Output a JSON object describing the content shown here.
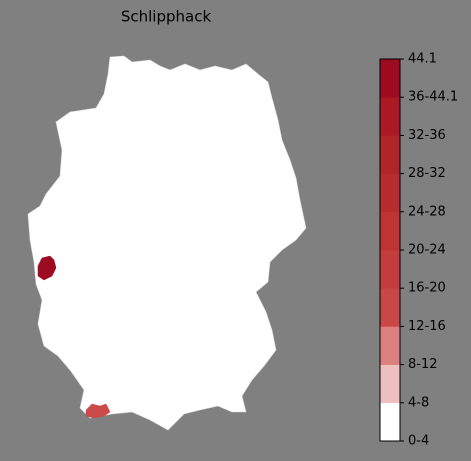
{
  "title": "Schlipphack",
  "colorbar": {
    "labels": [
      "0-4",
      "4-8",
      "8-12",
      "12-16",
      "16-20",
      "20-24",
      "24-28",
      "28-32",
      "32-36",
      "36-44.1",
      "44.1"
    ],
    "colors": [
      "#ffffff",
      "#eebfbf",
      "#db7f7f",
      "#c94747",
      "#c43d3d",
      "#be3434",
      "#b82c2e",
      "#b12428",
      "#a91a24",
      "#9c0b21"
    ]
  },
  "regions": [
    {
      "value": 40,
      "color": "#9c0b21"
    },
    {
      "value": 18,
      "color": "#cc4a4a"
    }
  ]
}
